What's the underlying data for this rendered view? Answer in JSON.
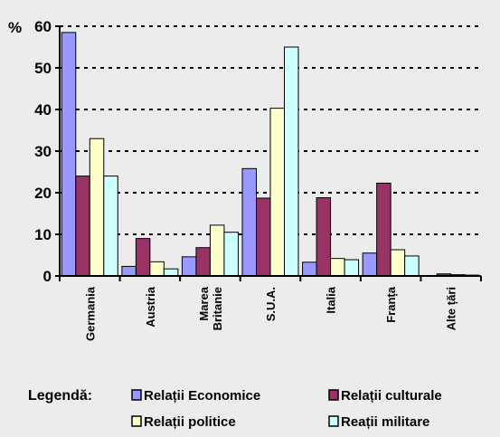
{
  "colors": {
    "background": "#ececec",
    "series": [
      "#9999ff",
      "#993366",
      "#ffffcc",
      "#ccffff"
    ],
    "outline": "#000000",
    "gridline": "#000000"
  },
  "chart_data": {
    "type": "bar",
    "title": "",
    "xlabel": "",
    "ylabel": "%",
    "ylim": [
      0,
      60
    ],
    "yticks": [
      0,
      10,
      20,
      30,
      40,
      50,
      60
    ],
    "grid": "horizontal dashed",
    "legend_position": "bottom",
    "legend_title": "Legendă:",
    "categories": [
      "Germania",
      "Austria",
      "Marea Britanie",
      "S.U.A.",
      "Italia",
      "Franța",
      "Alte țări"
    ],
    "category_lines": [
      [
        "Germania"
      ],
      [
        "Austria"
      ],
      [
        "Marea",
        "Britanie"
      ],
      [
        "S.U.A."
      ],
      [
        "Italia"
      ],
      [
        "Franța"
      ],
      [
        "Alte țări"
      ]
    ],
    "series": [
      {
        "name": "Relații Economice",
        "values": [
          58.5,
          2.3,
          4.6,
          25.8,
          3.3,
          5.5,
          0.1
        ]
      },
      {
        "name": "Relații culturale",
        "values": [
          24.0,
          9.0,
          6.8,
          18.7,
          18.8,
          22.3,
          0.5
        ]
      },
      {
        "name": "Relații politice",
        "values": [
          33.0,
          3.4,
          12.2,
          40.3,
          4.2,
          6.3,
          0.3
        ]
      },
      {
        "name": "Reații militare",
        "values": [
          24.0,
          1.7,
          10.5,
          55.0,
          3.9,
          4.8,
          0.2
        ]
      }
    ]
  }
}
